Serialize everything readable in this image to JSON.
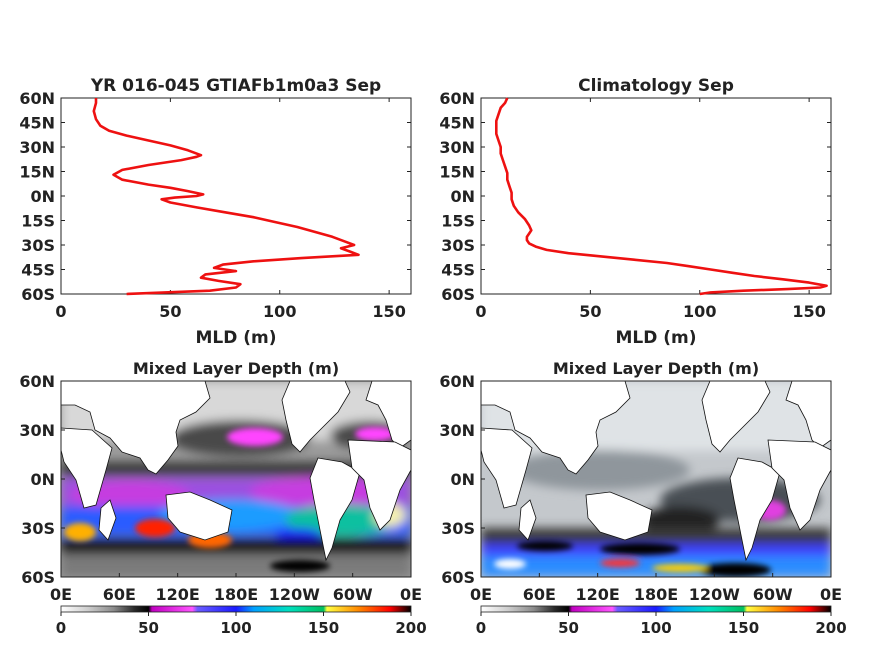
{
  "chart_data": [
    {
      "type": "line",
      "title": "YR 016-045 GTIAFb1m0a3 Sep",
      "xlabel": "MLD (m)",
      "ylabel": "",
      "xlim": [
        0,
        160
      ],
      "ylim": [
        -60,
        60
      ],
      "x_ticks": [
        "0",
        "50",
        "100",
        "150"
      ],
      "y_ticks": [
        "60N",
        "45N",
        "30N",
        "15N",
        "0N",
        "15S",
        "30S",
        "45S",
        "60S"
      ],
      "series": [
        {
          "color": "#ee1111",
          "lat": [
            60,
            57,
            52,
            47,
            43,
            40,
            37,
            34,
            31,
            28,
            25,
            24,
            22,
            19,
            16,
            13,
            10,
            7,
            5,
            3,
            1,
            0,
            -1,
            -2,
            -4,
            -7,
            -10,
            -13,
            -16,
            -19,
            -22,
            -25,
            -28,
            -30,
            -32,
            -34,
            -36,
            -38,
            -40,
            -42,
            -44,
            -46,
            -48,
            -50,
            -52,
            -54,
            -56,
            -58,
            -60
          ],
          "mld": [
            16,
            16,
            15,
            16,
            18,
            22,
            30,
            40,
            50,
            58,
            64,
            62,
            55,
            40,
            28,
            24,
            28,
            40,
            50,
            58,
            65,
            62,
            52,
            46,
            50,
            62,
            75,
            88,
            98,
            108,
            116,
            124,
            130,
            134,
            128,
            132,
            136,
            110,
            88,
            74,
            70,
            80,
            66,
            64,
            72,
            82,
            80,
            68,
            30
          ]
        }
      ]
    },
    {
      "type": "line",
      "title": "Climatology Sep",
      "xlabel": "MLD (m)",
      "ylabel": "",
      "xlim": [
        0,
        160
      ],
      "ylim": [
        -60,
        60
      ],
      "x_ticks": [
        "0",
        "50",
        "100",
        "150"
      ],
      "y_ticks": [
        "60N",
        "45N",
        "30N",
        "15N",
        "0N",
        "15S",
        "30S",
        "45S",
        "60S"
      ],
      "series": [
        {
          "color": "#ee1111",
          "lat": [
            60,
            57,
            54,
            50,
            46,
            42,
            38,
            34,
            30,
            26,
            22,
            18,
            14,
            10,
            6,
            2,
            -2,
            -6,
            -10,
            -14,
            -18,
            -21,
            -23,
            -25,
            -27,
            -29,
            -31,
            -33,
            -35,
            -37,
            -39,
            -41,
            -43,
            -45,
            -47,
            -49,
            -51,
            -53,
            -55,
            -56,
            -57,
            -58,
            -59,
            -60
          ],
          "mld": [
            12,
            11,
            9,
            8,
            7,
            7,
            7,
            8,
            9,
            9,
            10,
            11,
            12,
            12,
            13,
            14,
            14,
            15,
            17,
            20,
            22,
            23,
            22,
            21,
            21,
            22,
            25,
            30,
            40,
            55,
            70,
            85,
            95,
            105,
            115,
            125,
            138,
            150,
            158,
            155,
            140,
            120,
            105,
            100
          ]
        }
      ]
    },
    {
      "type": "heatmap",
      "title": "Mixed Layer Depth (m)",
      "x_ticks": [
        "0E",
        "60E",
        "120E",
        "180E",
        "120W",
        "60W",
        "0E"
      ],
      "y_ticks": [
        "60N",
        "30N",
        "0N",
        "30S",
        "60S"
      ],
      "colorbar": {
        "ticks": [
          "0",
          "50",
          "100",
          "150",
          "200"
        ],
        "range": [
          0,
          200
        ]
      }
    },
    {
      "type": "heatmap",
      "title": "Mixed Layer Depth (m)",
      "x_ticks": [
        "0E",
        "60E",
        "120E",
        "180E",
        "120W",
        "60W",
        "0E"
      ],
      "y_ticks": [
        "60N",
        "30N",
        "0N",
        "30S",
        "60S"
      ],
      "colorbar": {
        "ticks": [
          "0",
          "50",
          "100",
          "150",
          "200"
        ],
        "range": [
          0,
          200
        ]
      }
    }
  ],
  "colorbar_stops": [
    {
      "v": 0,
      "c": "#ffffff"
    },
    {
      "v": 15,
      "c": "#cfcfcf"
    },
    {
      "v": 30,
      "c": "#8c8c8c"
    },
    {
      "v": 42,
      "c": "#2a2a2a"
    },
    {
      "v": 50,
      "c": "#000000"
    },
    {
      "v": 52,
      "c": "#c000c0"
    },
    {
      "v": 75,
      "c": "#ff55ff"
    },
    {
      "v": 78,
      "c": "#6a5cff"
    },
    {
      "v": 100,
      "c": "#1a1aff"
    },
    {
      "v": 110,
      "c": "#00a0ff"
    },
    {
      "v": 130,
      "c": "#00e0c0"
    },
    {
      "v": 150,
      "c": "#00c060"
    },
    {
      "v": 152,
      "c": "#ffff40"
    },
    {
      "v": 170,
      "c": "#ff8800"
    },
    {
      "v": 188,
      "c": "#ff0000"
    },
    {
      "v": 200,
      "c": "#000000"
    }
  ]
}
